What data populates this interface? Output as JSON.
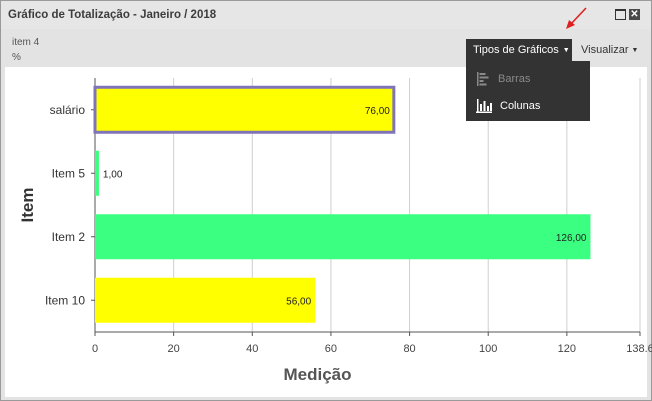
{
  "window": {
    "title": "Gráfico de Totalização - Janeiro / 2018",
    "close_glyph": "✕"
  },
  "header": {
    "item_label": "item 4",
    "unit_label": "%"
  },
  "toolbar": {
    "tipos_label": "Tipos de Gráficos",
    "visualizar_label": "Visualizar",
    "caret": "▼"
  },
  "dropdown": {
    "items": [
      {
        "label": "Barras",
        "icon": "horizontal-bars-icon",
        "enabled": false
      },
      {
        "label": "Colunas",
        "icon": "column-chart-icon",
        "enabled": true
      }
    ]
  },
  "chart_data": {
    "type": "bar",
    "orientation": "horizontal",
    "categories": [
      "salário",
      "Item 5",
      "Item 2",
      "Item 10"
    ],
    "values": [
      76,
      1,
      126,
      56
    ],
    "value_labels": [
      "76,00",
      "1,00",
      "126,00",
      "56,00"
    ],
    "colors": [
      "#ffff00",
      "#3bff80",
      "#3bff80",
      "#ffff00"
    ],
    "highlighted_index": 0,
    "highlight_border": "#7f74b8",
    "xlabel": "Medição",
    "ylabel": "Item",
    "xlim": [
      0,
      138.6
    ],
    "x_ticks": [
      0,
      20,
      40,
      60,
      80,
      100,
      120,
      138.6
    ],
    "x_tick_labels": [
      "0",
      "20",
      "40",
      "60",
      "80",
      "100",
      "120",
      "138.6"
    ],
    "grid": true
  },
  "colors": {
    "annotation_arrow": "#e02020",
    "menu_bg": "#333333"
  }
}
